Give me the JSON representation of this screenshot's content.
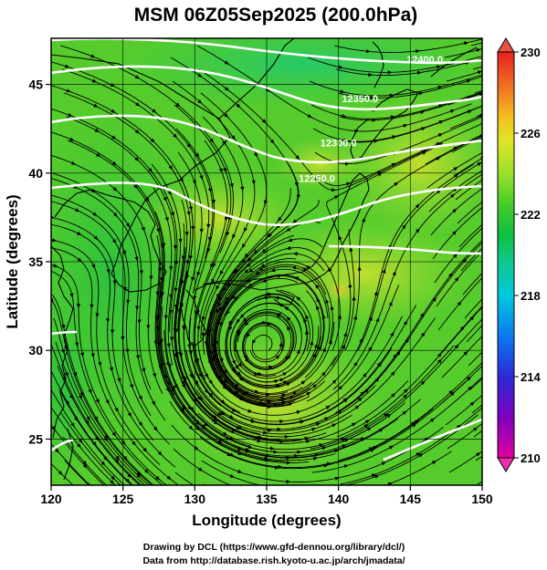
{
  "title": "MSM 06Z05Sep2025 (200.0hPa)",
  "credit": {
    "line1": "Drawing by DCL (https://www.gfd-dennou.org/library/dcl/)",
    "line2": "Data from http://database.rish.kyoto-u.ac.jp/arch/jmadata/"
  },
  "map": {
    "xlabel": "Longitude (degrees)",
    "ylabel": "Latitude  (degrees)",
    "lon_range": [
      120,
      150
    ],
    "lat_range": [
      22.4,
      47.6
    ],
    "lon_ticks": [
      120,
      125,
      130,
      135,
      140,
      145,
      150
    ],
    "lon_tick_labels": [
      "120",
      "125",
      "130",
      "135",
      "140",
      "145",
      "150"
    ],
    "lat_ticks": [
      25,
      30,
      35,
      40,
      45
    ],
    "lat_tick_labels": [
      "25",
      "30",
      "35",
      "40",
      "45"
    ],
    "grid": true,
    "cyclone_center": {
      "lon": 134.5,
      "lat": 30.0
    },
    "contour_labels": [
      {
        "text": "12400.0",
        "lon": 146.0,
        "lat": 46.2
      },
      {
        "text": "12350.0",
        "lon": 141.5,
        "lat": 44.0
      },
      {
        "text": "12300.0",
        "lon": 140.0,
        "lat": 41.5
      },
      {
        "text": "12250.0",
        "lon": 138.5,
        "lat": 39.5
      }
    ]
  },
  "colorbar": {
    "min": 210,
    "max": 230,
    "tick_values": [
      210,
      214,
      218,
      222,
      226,
      230
    ],
    "tick_labels": [
      "210",
      "214",
      "218",
      "222",
      "226",
      "230"
    ],
    "colors": [
      "#e0007c",
      "#8000c0",
      "#2a2ad6",
      "#0a7af0",
      "#00bfe0",
      "#10c8a0",
      "#10c050",
      "#3ccc2a",
      "#8ae02a",
      "#d6e428",
      "#f4c020",
      "#f08820",
      "#e85020",
      "#e82020"
    ]
  }
}
